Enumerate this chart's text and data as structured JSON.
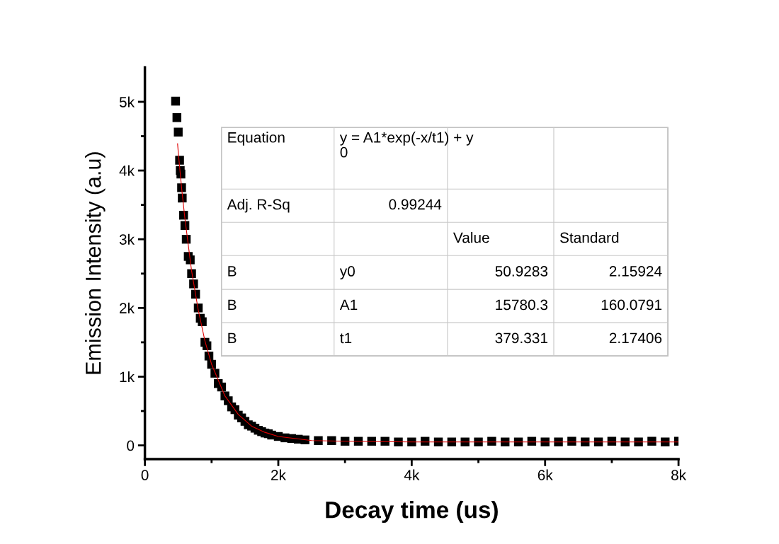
{
  "chart_data": {
    "type": "scatter",
    "xlabel": "Decay time (us)",
    "ylabel": "Emission Intensity (a.u)",
    "xlim": [
      0,
      8000
    ],
    "ylim": [
      -200,
      5500
    ],
    "xticks": [
      0,
      {
        "value": 1000,
        "label": null
      },
      {
        "value": 2000,
        "label": "2k"
      },
      {
        "value": 3000,
        "label": null
      },
      {
        "value": 4000,
        "label": "4k"
      },
      {
        "value": 5000,
        "label": null
      },
      {
        "value": 6000,
        "label": "6k"
      },
      {
        "value": 7000,
        "label": null
      },
      {
        "value": 8000,
        "label": "8k"
      }
    ],
    "yticks": [
      0,
      {
        "value": 500,
        "label": null
      },
      {
        "value": 1000,
        "label": "1k"
      },
      {
        "value": 1500,
        "label": null
      },
      {
        "value": 2000,
        "label": "2k"
      },
      {
        "value": 2500,
        "label": null
      },
      {
        "value": 3000,
        "label": "3k"
      },
      {
        "value": 3500,
        "label": null
      },
      {
        "value": 4000,
        "label": "4k"
      },
      {
        "value": 4500,
        "label": null
      },
      {
        "value": 5000,
        "label": "5k"
      }
    ],
    "grid": false,
    "marker": "square",
    "series": [
      {
        "color": "#000000",
        "x": [
          460,
          480,
          500,
          520,
          530,
          540,
          550,
          560,
          580,
          600,
          620,
          650,
          680,
          700,
          730,
          760,
          800,
          830,
          860,
          900,
          930,
          960,
          1000,
          1050,
          1100,
          1150,
          1200,
          1250,
          1300,
          1350,
          1400,
          1450,
          1500,
          1550,
          1600,
          1650,
          1700,
          1750,
          1800,
          1850,
          1900,
          2000,
          2100,
          2200,
          2300,
          2400,
          2600,
          2800,
          3000,
          3200,
          3400,
          3600,
          3800,
          4000,
          4200,
          4400,
          4600,
          4800,
          5000,
          5200,
          5400,
          5600,
          5800,
          6000,
          6200,
          6400,
          6600,
          6800,
          7000,
          7200,
          7400,
          7600,
          7800,
          8000
        ],
        "values": [
          5010,
          4770,
          4560,
          4150,
          4000,
          3950,
          3750,
          3600,
          3350,
          3200,
          3000,
          2750,
          2700,
          2500,
          2350,
          2200,
          2000,
          1850,
          1800,
          1500,
          1450,
          1300,
          1180,
          1050,
          900,
          850,
          720,
          650,
          560,
          520,
          440,
          400,
          350,
          300,
          280,
          250,
          220,
          200,
          180,
          170,
          150,
          130,
          110,
          100,
          90,
          80,
          70,
          70,
          60,
          60,
          60,
          60,
          50,
          50,
          60,
          50,
          50,
          50,
          50,
          60,
          50,
          50,
          60,
          50,
          50,
          60,
          50,
          50,
          60,
          50,
          50,
          60,
          50,
          60
        ]
      },
      {
        "type": "line",
        "color": "#e00000",
        "marker": "none",
        "x": [
          490,
          500,
          520,
          550,
          600,
          700,
          800,
          900,
          1000,
          1200,
          1400,
          1600,
          1800,
          2000,
          2500,
          3000,
          4000,
          8000
        ],
        "values": [
          4390,
          4270,
          4060,
          3750,
          3300,
          2540,
          1970,
          1520,
          1180,
          720,
          450,
          280,
          190,
          130,
          70,
          60,
          50,
          50
        ]
      }
    ],
    "annotations": [
      "Equation",
      "y = A1*exp(-x/t1) + y\n0",
      "Adj. R-Sq",
      "0.99244",
      "Value",
      "Standard",
      "B",
      "y0",
      "50.9283",
      "2.15924",
      "B",
      "A1",
      "15780.3",
      "160.0791",
      "B",
      "t1",
      "379.331",
      "2.17406"
    ]
  }
}
